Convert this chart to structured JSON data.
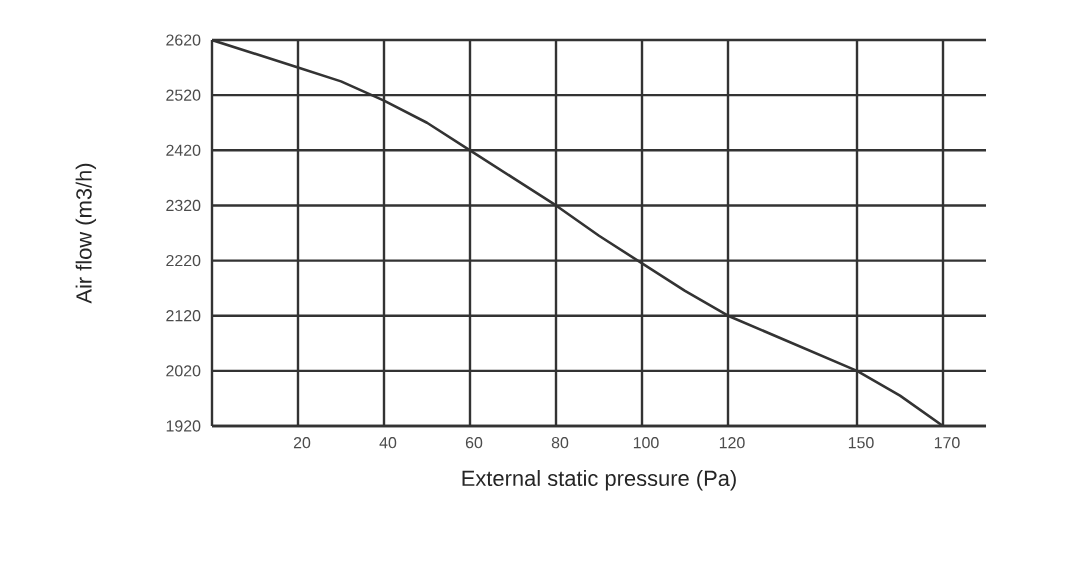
{
  "chart_data": {
    "type": "line",
    "xlabel": "External static pressure (Pa)",
    "ylabel": "Air flow (m3/h)",
    "x": [
      0,
      20,
      30,
      40,
      50,
      60,
      70,
      80,
      90,
      100,
      110,
      120,
      135,
      150,
      160,
      170
    ],
    "values": [
      2620,
      2570,
      2545,
      2510,
      2470,
      2420,
      2370,
      2320,
      2265,
      2215,
      2165,
      2120,
      2070,
      2020,
      1975,
      1920
    ],
    "color": "#333333",
    "xlim": [
      0,
      180
    ],
    "ylim": [
      1920,
      2620
    ],
    "xticks": [
      20,
      40,
      60,
      80,
      100,
      120,
      150,
      170
    ],
    "yticks": [
      1920,
      2020,
      2120,
      2220,
      2320,
      2420,
      2520,
      2620
    ],
    "grid": true,
    "marker": "none",
    "line_style": "solid"
  }
}
